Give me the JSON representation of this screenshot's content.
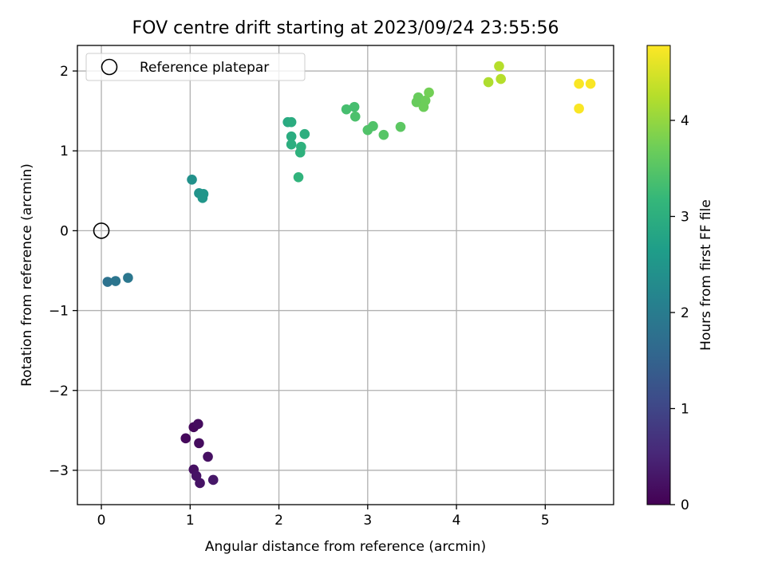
{
  "chart_data": {
    "type": "scatter",
    "title": "FOV centre drift starting at 2023/09/24 23:55:56",
    "xlabel": "Angular distance from reference (arcmin)",
    "ylabel": "Rotation from reference (arcmin)",
    "xlim": [
      -0.27,
      5.77
    ],
    "ylim": [
      -3.43,
      2.32
    ],
    "xticks": [
      0,
      1,
      2,
      3,
      4,
      5
    ],
    "xtick_labels": [
      "0",
      "1",
      "2",
      "3",
      "4",
      "5"
    ],
    "yticks": [
      -3,
      -2,
      -1,
      0,
      1,
      2
    ],
    "ytick_labels": [
      "−3",
      "−2",
      "−1",
      "0",
      "1",
      "2"
    ],
    "grid": true,
    "legend": {
      "placement": "top-left",
      "entries": [
        {
          "label": "Reference platepar",
          "marker": "hollow-circle",
          "color": "#000000"
        }
      ]
    },
    "reference_point": {
      "name": "Reference platepar",
      "x": 0.0,
      "y": 0.0
    },
    "colorbar": {
      "label": "Hours from first FF file",
      "colormap": "viridis",
      "range": [
        0,
        4.78
      ],
      "ticks": [
        0,
        1,
        2,
        3,
        4
      ],
      "tick_labels": [
        "0",
        "1",
        "2",
        "3",
        "4"
      ],
      "stops": [
        "#440154",
        "#482878",
        "#3e4a89",
        "#31688e",
        "#26828e",
        "#1f9e89",
        "#35b779",
        "#6ece58",
        "#b5de2b",
        "#fde725"
      ]
    },
    "points": [
      {
        "x": 0.95,
        "y": -2.6,
        "hours": 0.1
      },
      {
        "x": 1.04,
        "y": -2.46,
        "hours": 0.1
      },
      {
        "x": 1.09,
        "y": -2.42,
        "hours": 0.15
      },
      {
        "x": 1.1,
        "y": -2.66,
        "hours": 0.15
      },
      {
        "x": 1.2,
        "y": -2.83,
        "hours": 0.2
      },
      {
        "x": 1.04,
        "y": -2.99,
        "hours": 0.2
      },
      {
        "x": 1.07,
        "y": -3.07,
        "hours": 0.25
      },
      {
        "x": 1.11,
        "y": -3.16,
        "hours": 0.25
      },
      {
        "x": 1.26,
        "y": -3.12,
        "hours": 0.3
      },
      {
        "x": 0.07,
        "y": -0.64,
        "hours": 1.8
      },
      {
        "x": 0.16,
        "y": -0.63,
        "hours": 1.85
      },
      {
        "x": 0.3,
        "y": -0.59,
        "hours": 1.9
      },
      {
        "x": 1.02,
        "y": 0.64,
        "hours": 2.4
      },
      {
        "x": 1.1,
        "y": 0.47,
        "hours": 2.45
      },
      {
        "x": 1.15,
        "y": 0.46,
        "hours": 2.5
      },
      {
        "x": 1.14,
        "y": 0.41,
        "hours": 2.5
      },
      {
        "x": 2.1,
        "y": 1.36,
        "hours": 2.9
      },
      {
        "x": 2.14,
        "y": 1.36,
        "hours": 2.95
      },
      {
        "x": 2.14,
        "y": 1.18,
        "hours": 2.95
      },
      {
        "x": 2.14,
        "y": 1.08,
        "hours": 3.0
      },
      {
        "x": 2.29,
        "y": 1.21,
        "hours": 3.0
      },
      {
        "x": 2.25,
        "y": 1.05,
        "hours": 3.05
      },
      {
        "x": 2.24,
        "y": 0.98,
        "hours": 3.05
      },
      {
        "x": 2.22,
        "y": 0.67,
        "hours": 3.1
      },
      {
        "x": 2.76,
        "y": 1.52,
        "hours": 3.35
      },
      {
        "x": 2.85,
        "y": 1.55,
        "hours": 3.35
      },
      {
        "x": 2.86,
        "y": 1.43,
        "hours": 3.4
      },
      {
        "x": 3.0,
        "y": 1.26,
        "hours": 3.45
      },
      {
        "x": 3.06,
        "y": 1.31,
        "hours": 3.45
      },
      {
        "x": 3.18,
        "y": 1.2,
        "hours": 3.5
      },
      {
        "x": 3.37,
        "y": 1.3,
        "hours": 3.55
      },
      {
        "x": 3.55,
        "y": 1.61,
        "hours": 3.65
      },
      {
        "x": 3.57,
        "y": 1.67,
        "hours": 3.65
      },
      {
        "x": 3.63,
        "y": 1.55,
        "hours": 3.7
      },
      {
        "x": 3.65,
        "y": 1.63,
        "hours": 3.7
      },
      {
        "x": 3.69,
        "y": 1.73,
        "hours": 3.75
      },
      {
        "x": 4.36,
        "y": 1.86,
        "hours": 4.2
      },
      {
        "x": 4.48,
        "y": 2.06,
        "hours": 4.25
      },
      {
        "x": 4.5,
        "y": 1.9,
        "hours": 4.25
      },
      {
        "x": 5.38,
        "y": 1.84,
        "hours": 4.75
      },
      {
        "x": 5.51,
        "y": 1.84,
        "hours": 4.75
      },
      {
        "x": 5.38,
        "y": 1.53,
        "hours": 4.75
      }
    ]
  }
}
